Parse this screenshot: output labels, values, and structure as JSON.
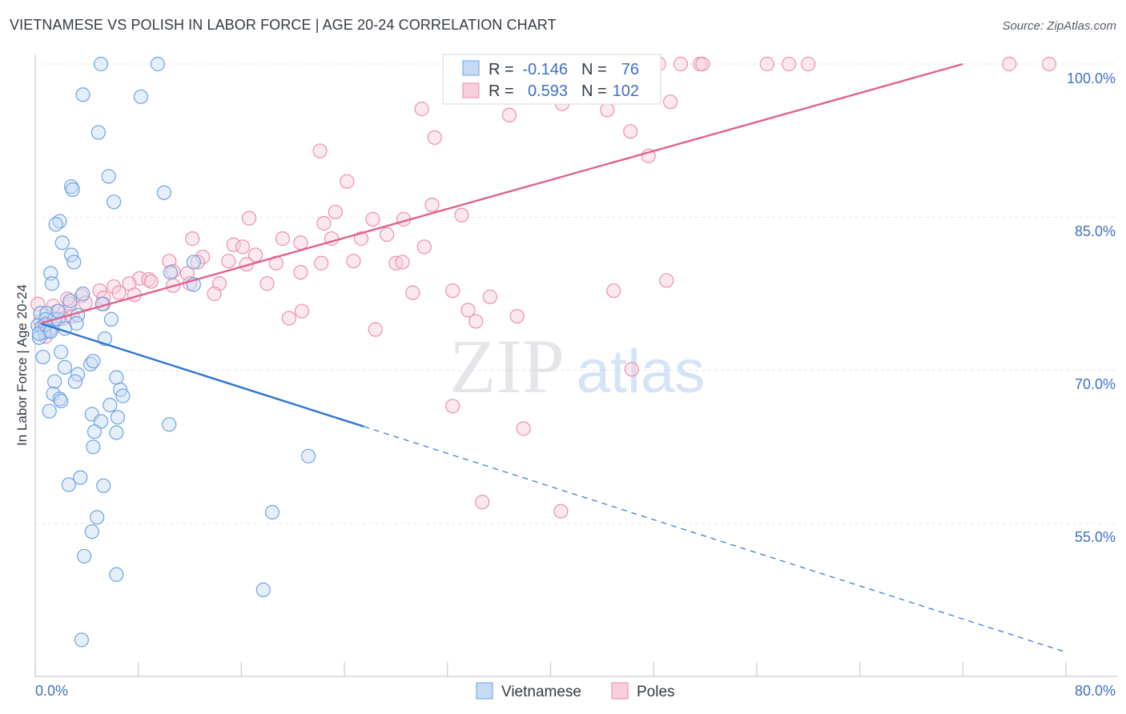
{
  "title": "VIETNAMESE VS POLISH IN LABOR FORCE | AGE 20-24 CORRELATION CHART",
  "source": "Source: ZipAtlas.com",
  "watermark": {
    "zip": "ZIP",
    "atlas": "atlas"
  },
  "chart_data": {
    "type": "scatter",
    "xlabel": "",
    "ylabel": "In Labor Force | Age 20-24",
    "xlim": [
      0,
      80
    ],
    "ylim": [
      41,
      101.5
    ],
    "x_tick_labels": [
      "0.0%",
      "80.0%"
    ],
    "y_ticks": [
      55,
      70,
      85,
      100
    ],
    "y_tick_labels": [
      "55.0%",
      "70.0%",
      "85.0%",
      "100.0%"
    ],
    "grid": true,
    "legend": [
      {
        "name": "Vietnamese",
        "r_label": "R =",
        "r_value": "-0.146",
        "n_label": "N =",
        "n_value": "76",
        "color": "#7aaee8",
        "fill": "#c5dbf5"
      },
      {
        "name": "Poles",
        "r_label": "R =",
        "r_value": "0.593",
        "n_label": "N =",
        "n_value": "102",
        "color": "#ef9ab5",
        "fill": "#f7cfdc"
      }
    ],
    "series": [
      {
        "name": "Vietnamese",
        "color": "#6fa3e3",
        "line_color": "#2f74d0",
        "trend": {
          "x0": 0.4,
          "y0": 74.6,
          "x1": 25.5,
          "y1": 64.5,
          "dash_to_x": 80,
          "dash_to_y": 42.4
        },
        "points": [
          [
            5.1,
            100
          ],
          [
            9.5,
            100
          ],
          [
            3.7,
            97
          ],
          [
            8.2,
            96.8
          ],
          [
            4.9,
            93.3
          ],
          [
            5.7,
            89
          ],
          [
            2.8,
            88
          ],
          [
            2.9,
            87.7
          ],
          [
            10,
            87.4
          ],
          [
            6.1,
            86.5
          ],
          [
            1.9,
            84.6
          ],
          [
            1.6,
            84.3
          ],
          [
            2.1,
            82.5
          ],
          [
            2.8,
            81.3
          ],
          [
            3,
            80.6
          ],
          [
            1.2,
            79.5
          ],
          [
            10.5,
            79.6
          ],
          [
            12.3,
            80.6
          ],
          [
            12.3,
            78.4
          ],
          [
            1.3,
            78.5
          ],
          [
            3.7,
            77.5
          ],
          [
            5.2,
            76.5
          ],
          [
            0.4,
            75.6
          ],
          [
            0.9,
            75.6
          ],
          [
            0.8,
            75
          ],
          [
            1.8,
            75
          ],
          [
            3.3,
            75.4
          ],
          [
            3.2,
            74.6
          ],
          [
            5.9,
            75
          ],
          [
            0.2,
            74.4
          ],
          [
            0.5,
            74.2
          ],
          [
            1.1,
            73.9
          ],
          [
            0.7,
            73.7
          ],
          [
            2.3,
            74.1
          ],
          [
            0.3,
            73.2
          ],
          [
            5.4,
            73.1
          ],
          [
            0.6,
            71.3
          ],
          [
            2,
            71.8
          ],
          [
            4.3,
            70.6
          ],
          [
            4.5,
            70.9
          ],
          [
            2.3,
            70.3
          ],
          [
            3.3,
            69.6
          ],
          [
            6.3,
            69.3
          ],
          [
            1.5,
            68.9
          ],
          [
            3.1,
            68.9
          ],
          [
            6.6,
            68.1
          ],
          [
            1.4,
            67.7
          ],
          [
            6.8,
            67.5
          ],
          [
            1.9,
            67.2
          ],
          [
            2,
            67
          ],
          [
            5.8,
            66.6
          ],
          [
            1.1,
            66
          ],
          [
            4.4,
            65.7
          ],
          [
            6.4,
            65.4
          ],
          [
            5.1,
            65
          ],
          [
            10.4,
            64.7
          ],
          [
            4.6,
            64
          ],
          [
            6.3,
            63.9
          ],
          [
            4.5,
            62.5
          ],
          [
            21.2,
            61.6
          ],
          [
            3.5,
            59.5
          ],
          [
            2.6,
            58.8
          ],
          [
            5.3,
            58.7
          ],
          [
            4.8,
            55.6
          ],
          [
            18.4,
            56.1
          ],
          [
            4.4,
            54.2
          ],
          [
            3.8,
            51.8
          ],
          [
            6.3,
            50
          ],
          [
            17.7,
            48.5
          ],
          [
            3.6,
            43.6
          ],
          [
            0.3,
            73.6
          ],
          [
            1.5,
            75
          ],
          [
            0.8,
            74.5
          ],
          [
            1.8,
            75.8
          ],
          [
            2.7,
            76.8
          ],
          [
            1.2,
            73.8
          ]
        ]
      },
      {
        "name": "Poles",
        "color": "#ee8fae",
        "line_color": "#e0628e",
        "trend": {
          "x0": 0.4,
          "y0": 74.6,
          "x1": 72,
          "y1": 100
        },
        "points": [
          [
            36.8,
            100
          ],
          [
            38.3,
            100
          ],
          [
            40,
            100
          ],
          [
            40.6,
            100
          ],
          [
            43,
            100
          ],
          [
            43.2,
            100
          ],
          [
            44.9,
            100
          ],
          [
            46.4,
            100
          ],
          [
            48.4,
            100
          ],
          [
            50.1,
            100
          ],
          [
            51.6,
            100
          ],
          [
            51.8,
            100
          ],
          [
            56.8,
            100
          ],
          [
            58.5,
            100
          ],
          [
            60,
            100
          ],
          [
            75.6,
            100
          ],
          [
            78.7,
            100
          ],
          [
            34.5,
            97.1
          ],
          [
            40.9,
            96.1
          ],
          [
            30,
            95.6
          ],
          [
            49.3,
            96.3
          ],
          [
            44.4,
            95.5
          ],
          [
            36.8,
            95
          ],
          [
            46.2,
            93.4
          ],
          [
            31,
            92.8
          ],
          [
            47.6,
            91
          ],
          [
            22.1,
            91.5
          ],
          [
            24.2,
            88.5
          ],
          [
            30.8,
            86.2
          ],
          [
            33.1,
            85.2
          ],
          [
            23.3,
            85.5
          ],
          [
            22.4,
            84.4
          ],
          [
            26.2,
            84.8
          ],
          [
            16.6,
            84.9
          ],
          [
            28.6,
            84.8
          ],
          [
            12.2,
            82.9
          ],
          [
            15.4,
            82.3
          ],
          [
            19.2,
            82.9
          ],
          [
            23,
            82.9
          ],
          [
            25.3,
            82.9
          ],
          [
            27.3,
            83.3
          ],
          [
            17.1,
            81.3
          ],
          [
            20.6,
            82.5
          ],
          [
            16.1,
            82.1
          ],
          [
            30.2,
            82.1
          ],
          [
            13,
            81.1
          ],
          [
            15,
            80.7
          ],
          [
            10.4,
            80.7
          ],
          [
            10.7,
            79.7
          ],
          [
            11.8,
            79.5
          ],
          [
            12.6,
            80.6
          ],
          [
            16.4,
            80.4
          ],
          [
            18.7,
            80.5
          ],
          [
            22.2,
            80.5
          ],
          [
            24.7,
            80.7
          ],
          [
            28,
            80.5
          ],
          [
            28.5,
            80.6
          ],
          [
            20.6,
            79.6
          ],
          [
            8.1,
            79
          ],
          [
            8.8,
            78.9
          ],
          [
            7.3,
            78.5
          ],
          [
            9,
            78.7
          ],
          [
            10.7,
            78.3
          ],
          [
            12,
            78.5
          ],
          [
            14.3,
            78.5
          ],
          [
            18,
            78.5
          ],
          [
            49,
            78.8
          ],
          [
            5,
            77.8
          ],
          [
            6.1,
            78.2
          ],
          [
            6.5,
            77.6
          ],
          [
            7.7,
            77.4
          ],
          [
            13.9,
            77.5
          ],
          [
            29.3,
            77.6
          ],
          [
            32.4,
            77.8
          ],
          [
            44.9,
            77.8
          ],
          [
            3.6,
            77.3
          ],
          [
            5.3,
            77.1
          ],
          [
            35.3,
            77.2
          ],
          [
            2.7,
            76.5
          ],
          [
            3.9,
            76.6
          ],
          [
            5.3,
            76.5
          ],
          [
            33.6,
            75.9
          ],
          [
            20.7,
            75.8
          ],
          [
            19.7,
            75.1
          ],
          [
            37.4,
            75.3
          ],
          [
            34.2,
            74.8
          ],
          [
            26.4,
            74
          ],
          [
            46.3,
            70.1
          ],
          [
            32.4,
            66.5
          ],
          [
            37.9,
            64.3
          ],
          [
            34.7,
            57.1
          ],
          [
            40.8,
            56.2
          ],
          [
            0.4,
            74.8
          ],
          [
            1.3,
            74.2
          ],
          [
            0.8,
            73.3
          ],
          [
            2.2,
            75.1
          ],
          [
            1.7,
            75.8
          ],
          [
            0.2,
            76.5
          ],
          [
            1.4,
            76.3
          ],
          [
            2.5,
            77
          ],
          [
            0.6,
            74
          ],
          [
            2.9,
            75.3
          ]
        ]
      }
    ]
  }
}
